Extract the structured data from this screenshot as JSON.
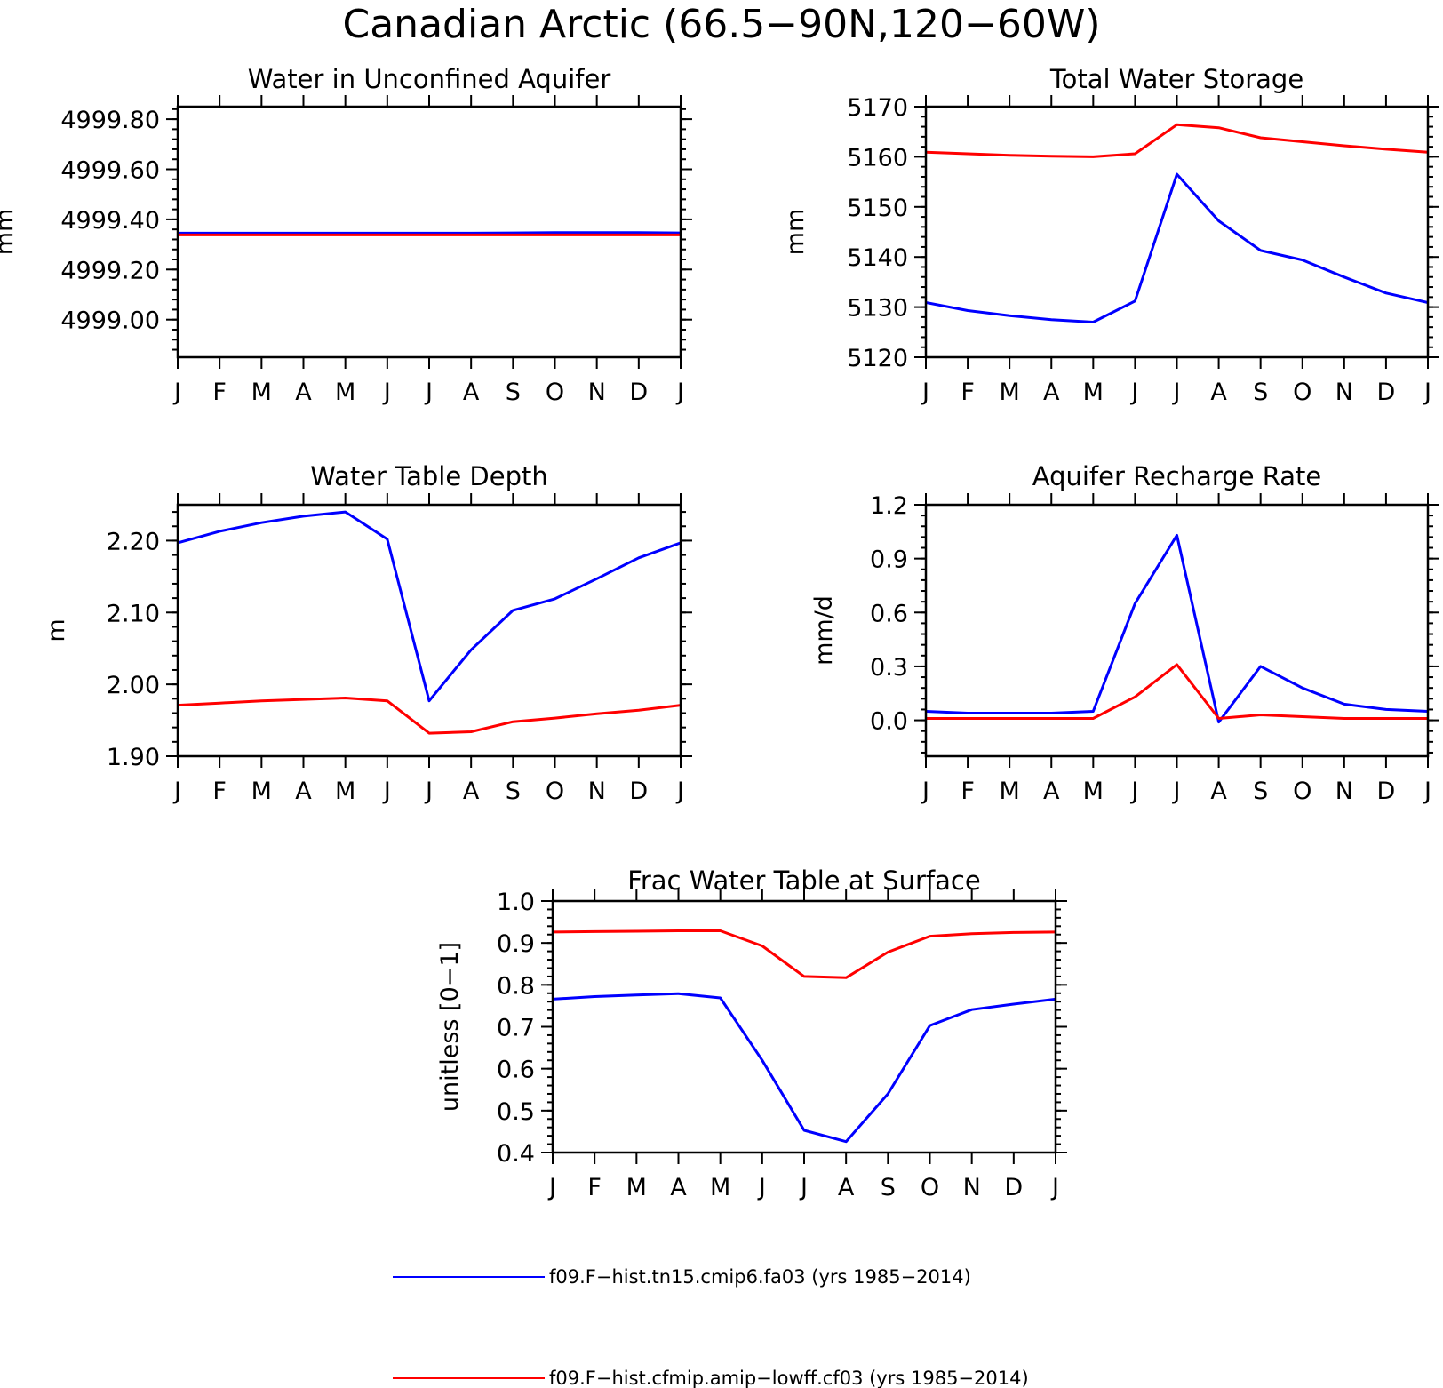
{
  "figure": {
    "title": "Canadian Arctic (66.5−90N,120−60W)",
    "legend": {
      "placement": "bottom-center",
      "entries": [
        {
          "label": "f09.F−hist.tn15.cmip6.fa03 (yrs 1985−2014)",
          "color": "#0000ff"
        },
        {
          "label": "f09.F−hist.cfmip.amip−lowff.cf03 (yrs 1985−2014)",
          "color": "#ff0000"
        }
      ]
    }
  },
  "chart_data": [
    {
      "type": "line",
      "title": "Water in Unconfined Aquifer",
      "ylabel": "mm",
      "ylim": [
        4998.85,
        4999.85
      ],
      "yticks": [
        4999.0,
        4999.2,
        4999.4,
        4999.6,
        4999.8
      ],
      "ytick_labels": [
        "4999.00",
        "4999.20",
        "4999.40",
        "4999.60",
        "4999.80"
      ],
      "categories": [
        "J",
        "F",
        "M",
        "A",
        "M",
        "J",
        "J",
        "A",
        "S",
        "O",
        "N",
        "D",
        "J"
      ],
      "series": [
        {
          "color": "#0000ff",
          "values": [
            4999.345,
            4999.345,
            4999.345,
            4999.345,
            4999.345,
            4999.345,
            4999.345,
            4999.345,
            4999.346,
            4999.347,
            4999.347,
            4999.347,
            4999.346
          ]
        },
        {
          "color": "#ff0000",
          "values": [
            4999.338,
            4999.338,
            4999.338,
            4999.338,
            4999.338,
            4999.338,
            4999.338,
            4999.338,
            4999.338,
            4999.338,
            4999.338,
            4999.338,
            4999.338
          ]
        }
      ]
    },
    {
      "type": "line",
      "title": "Total Water Storage",
      "ylabel": "mm",
      "ylim": [
        5120,
        5170
      ],
      "yticks": [
        5120,
        5130,
        5140,
        5150,
        5160,
        5170
      ],
      "ytick_labels": [
        "5120",
        "5130",
        "5140",
        "5150",
        "5160",
        "5170"
      ],
      "categories": [
        "J",
        "F",
        "M",
        "A",
        "M",
        "J",
        "J",
        "A",
        "S",
        "O",
        "N",
        "D",
        "J"
      ],
      "series": [
        {
          "color": "#0000ff",
          "values": [
            5130.9,
            5129.3,
            5128.3,
            5127.5,
            5127.0,
            5131.2,
            5156.5,
            5147.2,
            5141.3,
            5139.4,
            5136.0,
            5132.8,
            5130.9
          ]
        },
        {
          "color": "#ff0000",
          "values": [
            5160.9,
            5160.6,
            5160.3,
            5160.1,
            5160.0,
            5160.6,
            5166.4,
            5165.8,
            5163.8,
            5163.0,
            5162.2,
            5161.5,
            5160.9
          ]
        }
      ]
    },
    {
      "type": "line",
      "title": "Water Table Depth",
      "ylabel": "m",
      "ylim": [
        1.9,
        2.25
      ],
      "yticks": [
        1.9,
        2.0,
        2.1,
        2.2
      ],
      "ytick_labels": [
        "1.90",
        "2.00",
        "2.10",
        "2.20"
      ],
      "categories": [
        "J",
        "F",
        "M",
        "A",
        "M",
        "J",
        "J",
        "A",
        "S",
        "O",
        "N",
        "D",
        "J"
      ],
      "series": [
        {
          "color": "#0000ff",
          "values": [
            2.197,
            2.213,
            2.225,
            2.234,
            2.24,
            2.202,
            1.977,
            2.048,
            2.103,
            2.119,
            2.147,
            2.176,
            2.197
          ]
        },
        {
          "color": "#ff0000",
          "values": [
            1.971,
            1.974,
            1.977,
            1.979,
            1.981,
            1.977,
            1.932,
            1.934,
            1.948,
            1.953,
            1.959,
            1.964,
            1.971
          ]
        }
      ]
    },
    {
      "type": "line",
      "title": "Aquifer Recharge Rate",
      "ylabel": "mm/d",
      "ylim": [
        -0.2,
        1.2
      ],
      "yticks": [
        0.0,
        0.3,
        0.6,
        0.9,
        1.2
      ],
      "ytick_labels": [
        "0.0",
        "0.3",
        "0.6",
        "0.9",
        "1.2"
      ],
      "categories": [
        "J",
        "F",
        "M",
        "A",
        "M",
        "J",
        "J",
        "A",
        "S",
        "O",
        "N",
        "D",
        "J"
      ],
      "series": [
        {
          "color": "#0000ff",
          "values": [
            0.05,
            0.04,
            0.04,
            0.04,
            0.05,
            0.65,
            1.03,
            -0.01,
            0.3,
            0.18,
            0.09,
            0.06,
            0.05
          ]
        },
        {
          "color": "#ff0000",
          "values": [
            0.01,
            0.01,
            0.01,
            0.01,
            0.01,
            0.13,
            0.31,
            0.01,
            0.03,
            0.02,
            0.01,
            0.01,
            0.01
          ]
        }
      ]
    },
    {
      "type": "line",
      "title": "Frac Water Table at Surface",
      "ylabel": "unitless [0−1]",
      "ylim": [
        0.4,
        1.0
      ],
      "yticks": [
        0.4,
        0.5,
        0.6,
        0.7,
        0.8,
        0.9,
        1.0
      ],
      "ytick_labels": [
        "0.4",
        "0.5",
        "0.6",
        "0.7",
        "0.8",
        "0.9",
        "1.0"
      ],
      "categories": [
        "J",
        "F",
        "M",
        "A",
        "M",
        "J",
        "J",
        "A",
        "S",
        "O",
        "N",
        "D",
        "J"
      ],
      "series": [
        {
          "color": "#0000ff",
          "values": [
            0.766,
            0.772,
            0.776,
            0.779,
            0.769,
            0.62,
            0.453,
            0.426,
            0.54,
            0.703,
            0.741,
            0.754,
            0.766
          ]
        },
        {
          "color": "#ff0000",
          "values": [
            0.926,
            0.927,
            0.928,
            0.929,
            0.929,
            0.893,
            0.82,
            0.817,
            0.878,
            0.916,
            0.922,
            0.925,
            0.926
          ]
        }
      ]
    }
  ]
}
